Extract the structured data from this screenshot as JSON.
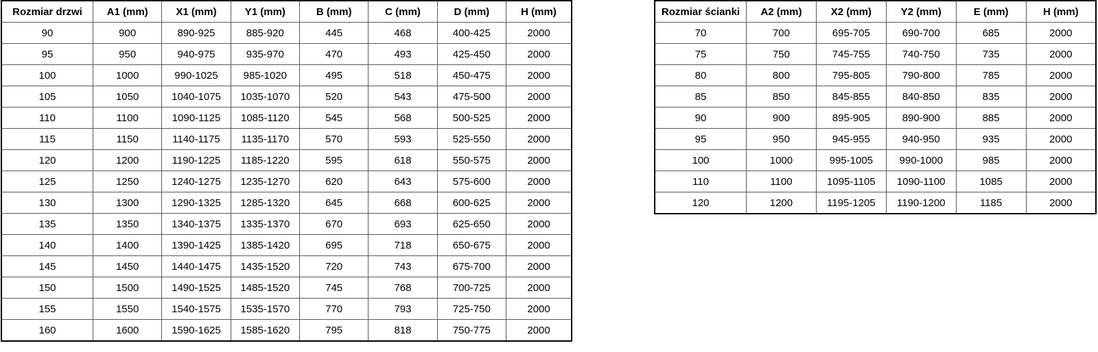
{
  "colors": {
    "background": "#ffffff",
    "text": "#000000",
    "border_inner": "#595959",
    "border_outer": "#000000"
  },
  "tables": [
    {
      "name": "door-sizes",
      "headers": [
        "Rozmiar drzwi",
        "A1 (mm)",
        "X1 (mm)",
        "Y1 (mm)",
        "B (mm)",
        "C (mm)",
        "D (mm)",
        "H (mm)"
      ],
      "rows": [
        [
          "90",
          "900",
          "890-925",
          "885-920",
          "445",
          "468",
          "400-425",
          "2000"
        ],
        [
          "95",
          "950",
          "940-975",
          "935-970",
          "470",
          "493",
          "425-450",
          "2000"
        ],
        [
          "100",
          "1000",
          "990-1025",
          "985-1020",
          "495",
          "518",
          "450-475",
          "2000"
        ],
        [
          "105",
          "1050",
          "1040-1075",
          "1035-1070",
          "520",
          "543",
          "475-500",
          "2000"
        ],
        [
          "110",
          "1100",
          "1090-1125",
          "1085-1120",
          "545",
          "568",
          "500-525",
          "2000"
        ],
        [
          "115",
          "1150",
          "1140-1175",
          "1135-1170",
          "570",
          "593",
          "525-550",
          "2000"
        ],
        [
          "120",
          "1200",
          "1190-1225",
          "1185-1220",
          "595",
          "618",
          "550-575",
          "2000"
        ],
        [
          "125",
          "1250",
          "1240-1275",
          "1235-1270",
          "620",
          "643",
          "575-600",
          "2000"
        ],
        [
          "130",
          "1300",
          "1290-1325",
          "1285-1320",
          "645",
          "668",
          "600-625",
          "2000"
        ],
        [
          "135",
          "1350",
          "1340-1375",
          "1335-1370",
          "670",
          "693",
          "625-650",
          "2000"
        ],
        [
          "140",
          "1400",
          "1390-1425",
          "1385-1420",
          "695",
          "718",
          "650-675",
          "2000"
        ],
        [
          "145",
          "1450",
          "1440-1475",
          "1435-1520",
          "720",
          "743",
          "675-700",
          "2000"
        ],
        [
          "150",
          "1500",
          "1490-1525",
          "1485-1520",
          "745",
          "768",
          "700-725",
          "2000"
        ],
        [
          "155",
          "1550",
          "1540-1575",
          "1535-1570",
          "770",
          "793",
          "725-750",
          "2000"
        ],
        [
          "160",
          "1600",
          "1590-1625",
          "1585-1620",
          "795",
          "818",
          "750-775",
          "2000"
        ]
      ]
    },
    {
      "name": "wall-sizes",
      "headers": [
        "Rozmiar ścianki",
        "A2 (mm)",
        "X2 (mm)",
        "Y2 (mm)",
        "E (mm)",
        "H (mm)"
      ],
      "rows": [
        [
          "70",
          "700",
          "695-705",
          "690-700",
          "685",
          "2000"
        ],
        [
          "75",
          "750",
          "745-755",
          "740-750",
          "735",
          "2000"
        ],
        [
          "80",
          "800",
          "795-805",
          "790-800",
          "785",
          "2000"
        ],
        [
          "85",
          "850",
          "845-855",
          "840-850",
          "835",
          "2000"
        ],
        [
          "90",
          "900",
          "895-905",
          "890-900",
          "885",
          "2000"
        ],
        [
          "95",
          "950",
          "945-955",
          "940-950",
          "935",
          "2000"
        ],
        [
          "100",
          "1000",
          "995-1005",
          "990-1000",
          "985",
          "2000"
        ],
        [
          "110",
          "1100",
          "1095-1105",
          "1090-1100",
          "1085",
          "2000"
        ],
        [
          "120",
          "1200",
          "1195-1205",
          "1190-1200",
          "1185",
          "2000"
        ]
      ]
    }
  ]
}
